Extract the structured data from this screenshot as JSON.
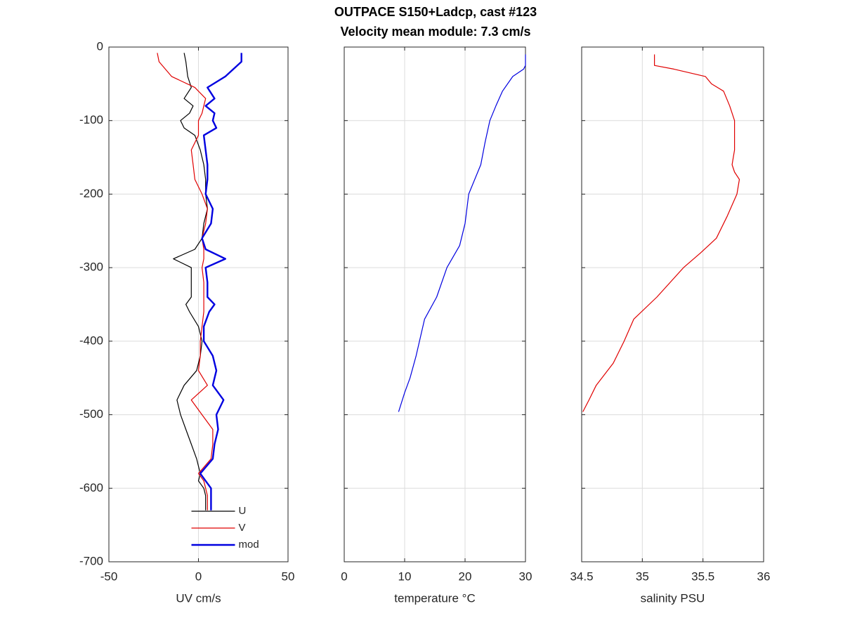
{
  "title": "OUTPACE S150+Ladcp, cast #123",
  "subtitle": "Velocity mean module:  7.3 cm/s",
  "chart_data": [
    {
      "type": "line",
      "xlabel": "UV cm/s",
      "xlim": [
        -50,
        50
      ],
      "xticks": [
        -50,
        0,
        50
      ],
      "ylim": [
        -700,
        0
      ],
      "yticks": [
        -700,
        -600,
        -500,
        -400,
        -300,
        -200,
        -100,
        0
      ],
      "ytick_labels": true,
      "grid": true,
      "legend": "south",
      "series": [
        {
          "name": "U",
          "color": "#000000",
          "width": 1.2,
          "x": [
            -8,
            -7,
            -6,
            -4,
            -8,
            -3,
            -5,
            -10,
            -8,
            -2,
            1,
            3,
            4,
            4,
            5,
            3,
            2,
            -2,
            -14,
            -4,
            -4,
            -4,
            -7,
            -5,
            0,
            2,
            1,
            -1,
            -8,
            -12,
            -10,
            -7,
            -4,
            -1,
            1,
            0,
            3,
            4,
            4
          ],
          "y": [
            -8,
            -20,
            -40,
            -55,
            -70,
            -80,
            -90,
            -100,
            -110,
            -120,
            -140,
            -160,
            -180,
            -200,
            -220,
            -240,
            -260,
            -275,
            -288,
            -300,
            -320,
            -340,
            -350,
            -360,
            -380,
            -400,
            -420,
            -440,
            -460,
            -480,
            -500,
            -520,
            -540,
            -560,
            -580,
            -590,
            -600,
            -610,
            -630
          ]
        },
        {
          "name": "V",
          "color": "#e00000",
          "width": 1.2,
          "x": [
            -23,
            -22,
            -15,
            -2,
            4,
            3,
            2,
            0,
            0,
            0,
            -4,
            -3,
            -2,
            2,
            5,
            4,
            2,
            3,
            3,
            2,
            3,
            3,
            3,
            3,
            2,
            1,
            1,
            0,
            5,
            -4,
            2,
            8,
            8,
            7,
            0,
            3,
            4,
            5,
            5
          ],
          "y": [
            -8,
            -20,
            -40,
            -55,
            -70,
            -80,
            -90,
            -100,
            -110,
            -120,
            -140,
            -160,
            -180,
            -200,
            -220,
            -240,
            -260,
            -275,
            -288,
            -300,
            -320,
            -340,
            -350,
            -360,
            -380,
            -400,
            -420,
            -440,
            -460,
            -480,
            -500,
            -520,
            -540,
            -560,
            -580,
            -590,
            -600,
            -610,
            -630
          ]
        },
        {
          "name": "mod",
          "color": "#0000e0",
          "width": 2.4,
          "x": [
            24,
            24,
            15,
            5,
            9,
            4,
            9,
            8,
            10,
            3,
            4,
            5,
            5,
            4,
            8,
            7,
            2,
            4,
            15,
            4,
            5,
            5,
            9,
            6,
            3,
            3,
            8,
            10,
            8,
            14,
            10,
            11,
            9,
            8,
            1,
            4,
            7,
            7,
            7
          ],
          "y": [
            -8,
            -20,
            -40,
            -55,
            -70,
            -80,
            -90,
            -100,
            -110,
            -120,
            -140,
            -160,
            -180,
            -200,
            -220,
            -240,
            -260,
            -275,
            -288,
            -300,
            -320,
            -340,
            -350,
            -360,
            -380,
            -400,
            -420,
            -440,
            -460,
            -480,
            -500,
            -520,
            -540,
            -560,
            -580,
            -590,
            -600,
            -610,
            -630
          ]
        }
      ]
    },
    {
      "type": "line",
      "xlabel": "temperature °C",
      "xlim": [
        0,
        30
      ],
      "xticks": [
        0,
        10,
        20,
        30
      ],
      "ylim": [
        -700,
        0
      ],
      "yticks": [
        -700,
        -600,
        -500,
        -400,
        -300,
        -200,
        -100,
        0
      ],
      "ytick_labels": false,
      "grid": true,
      "series": [
        {
          "color": "#0000e0",
          "width": 1.2,
          "x": [
            30,
            30,
            29.7,
            27.9,
            26.2,
            25.1,
            24.1,
            23.3,
            22.6,
            20.6,
            20,
            19.1,
            17,
            15.3,
            13.3,
            11.9,
            10.9,
            10,
            9
          ],
          "y": [
            -10,
            -25,
            -30,
            -40,
            -60,
            -80,
            -100,
            -130,
            -160,
            -200,
            -240,
            -270,
            -300,
            -340,
            -370,
            -420,
            -450,
            -470,
            -496
          ]
        }
      ]
    },
    {
      "type": "line",
      "xlabel": "salinity PSU",
      "xlim": [
        34.5,
        36
      ],
      "xticks": [
        34.5,
        35,
        35.5,
        36
      ],
      "ylim": [
        -700,
        0
      ],
      "yticks": [
        -700,
        -600,
        -500,
        -400,
        -300,
        -200,
        -100,
        0
      ],
      "ytick_labels": false,
      "grid": true,
      "series": [
        {
          "color": "#e00000",
          "width": 1.2,
          "x": [
            35.1,
            35.1,
            35.26,
            35.52,
            35.57,
            35.67,
            35.72,
            35.76,
            35.76,
            35.74,
            35.76,
            35.8,
            35.78,
            35.7,
            35.61,
            35.48,
            35.34,
            35.12,
            34.93,
            34.85,
            34.76,
            34.62,
            34.56,
            34.51
          ],
          "y": [
            -10,
            -25,
            -30,
            -40,
            -50,
            -60,
            -80,
            -100,
            -140,
            -160,
            -170,
            -180,
            -200,
            -230,
            -260,
            -280,
            -300,
            -340,
            -370,
            -400,
            -430,
            -460,
            -480,
            -496
          ]
        }
      ]
    }
  ]
}
